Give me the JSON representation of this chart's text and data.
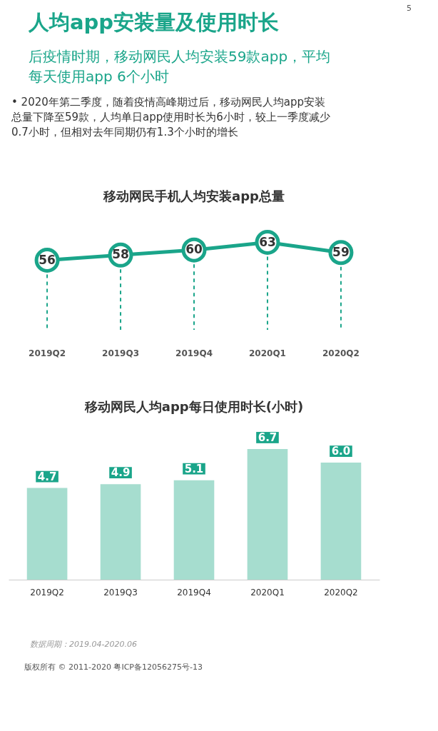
{
  "chart_data": [
    {
      "type": "line",
      "title": "移动网民手机人均安装app总量",
      "annotations": [
        "人均app安装量及使用时长",
        "后疫情时期，移动网民人均安装59款app，平均每天使用app 6个小时",
        "• 2020年第二季度，随着疫情高峰期过后，移动网民人均app安装总量下降至59款，人均单日app使用时长为6小时，较上一季度减少0.7小时，但相对去年同期仍有1.3个小时的增长",
        "5"
      ],
      "categories": [
        "2019Q2",
        "2019Q3",
        "2019Q4",
        "2020Q1",
        "2020Q2"
      ],
      "series": [
        {
          "color": "#1aa58a",
          "values": [
            56,
            58,
            60,
            63,
            59
          ]
        }
      ],
      "tick_labels": "x",
      "marker": "circle",
      "data_labels": true,
      "grid": "x"
    },
    {
      "type": "bar",
      "title": "移动网民人均app每日使用时长(小时)",
      "annotations": [
        "数据周期：2019.04-2020.06",
        "版权所有 © 2011-2020 粤ICP备12056275号-13"
      ],
      "categories": [
        "2019Q2",
        "2019Q3",
        "2019Q4",
        "2020Q1",
        "2020Q2"
      ],
      "series": [
        {
          "color": "#a6ddcf",
          "values": [
            4.7,
            4.9,
            5.1,
            6.7,
            6.0
          ],
          "value_labels": [
            "4.7",
            "4.9",
            "5.1",
            "6.7",
            "6.0"
          ]
        }
      ],
      "tick_labels": "x"
    }
  ]
}
